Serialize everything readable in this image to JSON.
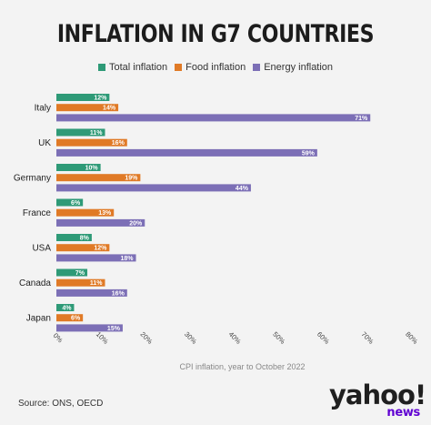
{
  "chart_data": {
    "type": "bar",
    "orientation": "horizontal",
    "title": "INFLATION IN G7 COUNTRIES",
    "xlabel": "CPI inflation, year to October 2022",
    "ylabel": "",
    "xlim": [
      0,
      80
    ],
    "x_ticks": [
      "0%",
      "10%",
      "20%",
      "30%",
      "40%",
      "50%",
      "60%",
      "70%",
      "80%"
    ],
    "legend_position": "top-center",
    "categories": [
      "Italy",
      "UK",
      "Germany",
      "France",
      "USA",
      "Canada",
      "Japan"
    ],
    "series": [
      {
        "name": "Total inflation",
        "color": "#2e9a77",
        "values": [
          12,
          11,
          10,
          6,
          8,
          7,
          4
        ],
        "labels": [
          "12%",
          "11%",
          "10%",
          "6%",
          "8%",
          "7%",
          "4%"
        ]
      },
      {
        "name": "Food inflation",
        "color": "#e07a26",
        "values": [
          14,
          16,
          19,
          13,
          12,
          11,
          6
        ],
        "labels": [
          "14%",
          "16%",
          "19%",
          "13%",
          "12%",
          "11%",
          "6%"
        ]
      },
      {
        "name": "Energy inflation",
        "color": "#7c6fb6",
        "values": [
          71,
          59,
          44,
          20,
          18,
          16,
          15
        ],
        "labels": [
          "71%",
          "59%",
          "44%",
          "20%",
          "18%",
          "16%",
          "15%"
        ]
      }
    ],
    "grid": false
  },
  "source": "Source: ONS, OECD",
  "logo": {
    "main": "yahoo!",
    "sub": "news"
  }
}
